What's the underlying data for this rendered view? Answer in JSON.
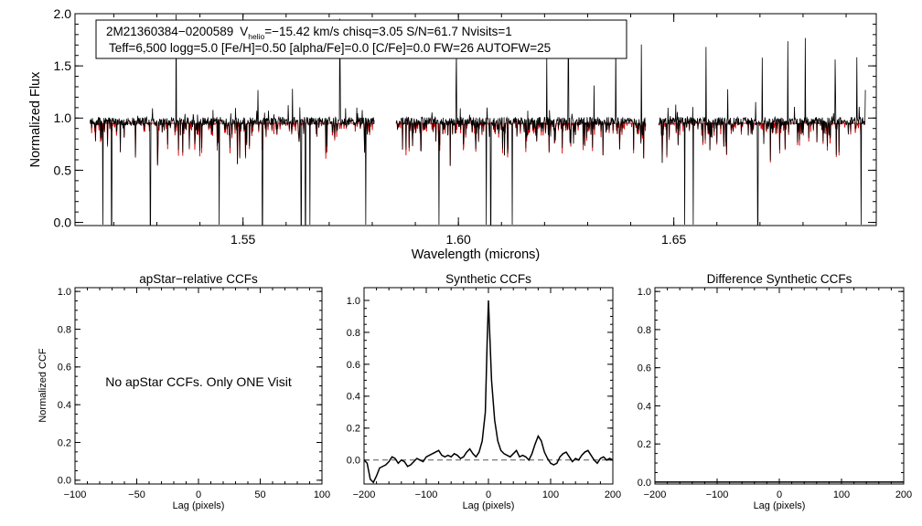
{
  "chart_data": [
    {
      "type": "line",
      "id": "spectrum",
      "title": "",
      "annotation": {
        "line1_id": "2M21360384−0200589",
        "line1_v": "V",
        "line1_vsub": "helio",
        "line1_rest": "=−15.42 km/s  chisq=3.05  S/N=61.7  Nvisits=1",
        "line2": "Teff=6,500 logg=5.0 [Fe/H]=0.50 [alpha/Fe]=0.0 [C/Fe]=0.0 FW=26 AUTOFW=25"
      },
      "xlabel": "Wavelength (microns)",
      "ylabel": "Normalized Flux",
      "xlim": [
        1.511,
        1.697
      ],
      "ylim": [
        -0.03,
        2.0
      ],
      "xticks": [
        1.55,
        1.6,
        1.65
      ],
      "xtick_labels": [
        "1.55",
        "1.60",
        "1.65"
      ],
      "yticks": [
        0.0,
        0.5,
        1.0,
        1.5,
        2.0
      ],
      "ytick_labels": [
        "0.0",
        "0.5",
        "1.0",
        "1.5",
        "2.0"
      ],
      "segments": [
        [
          1.5145,
          1.5805
        ],
        [
          1.5855,
          1.6435
        ],
        [
          1.6465,
          1.6945
        ]
      ],
      "series": [
        {
          "role": "observed",
          "color": "#000000"
        },
        {
          "role": "model",
          "color": "#dd0000"
        }
      ],
      "spikes_up": [
        1.5285,
        1.5345,
        1.5535,
        1.5615,
        1.5655,
        1.5725,
        1.5785,
        1.5995,
        1.6205,
        1.6255,
        1.6315,
        1.6365,
        1.6425,
        1.6575,
        1.6625,
        1.6705,
        1.6765,
        1.6805,
        1.6875,
        1.6925,
        1.6945
      ],
      "spikes_down": [
        1.5175,
        1.5195,
        1.5285,
        1.5445,
        1.5545,
        1.5635,
        1.5645,
        1.5655,
        1.5785,
        1.5955,
        1.6065,
        1.6075,
        1.6125,
        1.6525,
        1.6545,
        1.6695,
        1.6935
      ]
    },
    {
      "type": "line",
      "id": "apstar",
      "title": "apStar−relative CCFs",
      "xlabel": "Lag (pixels)",
      "ylabel": "Normalized CCF",
      "xlim": [
        -100,
        100
      ],
      "ylim": [
        -0.02,
        1.02
      ],
      "xticks": [
        -100,
        -50,
        0,
        50,
        100
      ],
      "xtick_labels": [
        "−100",
        "−50",
        "0",
        "50",
        "100"
      ],
      "yticks": [
        0.0,
        0.2,
        0.4,
        0.6,
        0.8,
        1.0
      ],
      "ytick_labels": [
        "0.0",
        "0.2",
        "0.4",
        "0.6",
        "0.8",
        "1.0"
      ],
      "message": "No apStar CCFs.  Only ONE Visit",
      "series": []
    },
    {
      "type": "line",
      "id": "synthetic",
      "title": "Synthetic CCFs",
      "xlabel": "Lag (pixels)",
      "ylabel": "",
      "xlim": [
        -200,
        200
      ],
      "ylim": [
        -0.15,
        1.08
      ],
      "xticks": [
        -200,
        -100,
        0,
        100,
        200
      ],
      "xtick_labels": [
        "−200",
        "−100",
        "0",
        "100",
        "200"
      ],
      "yticks": [
        0.0,
        0.2,
        0.4,
        0.6,
        0.8,
        1.0
      ],
      "ytick_labels": [
        "0.0",
        "0.2",
        "0.4",
        "0.6",
        "0.8",
        "1.0"
      ],
      "reference_line": 0.0,
      "series": [
        {
          "color": "#000000",
          "x": [
            -200,
            -195,
            -190,
            -185,
            -180,
            -175,
            -170,
            -165,
            -160,
            -155,
            -150,
            -145,
            -140,
            -135,
            -130,
            -125,
            -120,
            -115,
            -110,
            -105,
            -100,
            -95,
            -90,
            -85,
            -80,
            -75,
            -70,
            -65,
            -60,
            -55,
            -50,
            -45,
            -40,
            -35,
            -30,
            -25,
            -20,
            -15,
            -10,
            -5,
            -2,
            0,
            2,
            5,
            10,
            15,
            20,
            25,
            30,
            35,
            40,
            45,
            50,
            55,
            60,
            65,
            70,
            75,
            80,
            85,
            90,
            95,
            100,
            105,
            110,
            115,
            120,
            125,
            130,
            135,
            140,
            145,
            150,
            155,
            160,
            165,
            170,
            175,
            180,
            185,
            190,
            195,
            200
          ],
          "y": [
            0.0,
            -0.02,
            -0.12,
            -0.14,
            -0.1,
            -0.05,
            -0.04,
            -0.03,
            -0.01,
            0.02,
            0.01,
            -0.02,
            0.0,
            -0.01,
            -0.04,
            -0.03,
            -0.01,
            0.01,
            0.0,
            -0.01,
            0.02,
            0.03,
            0.04,
            0.05,
            0.06,
            0.03,
            0.02,
            0.03,
            0.02,
            0.04,
            0.03,
            0.01,
            0.02,
            0.05,
            0.07,
            0.04,
            0.02,
            0.05,
            0.12,
            0.3,
            0.75,
            1.0,
            0.8,
            0.5,
            0.25,
            0.12,
            0.06,
            0.04,
            0.03,
            0.02,
            0.04,
            0.06,
            0.02,
            0.03,
            0.02,
            0.0,
            0.04,
            0.1,
            0.15,
            0.12,
            0.05,
            0.01,
            -0.02,
            -0.03,
            -0.02,
            0.02,
            0.04,
            0.05,
            0.02,
            -0.01,
            0.01,
            0.0,
            0.03,
            0.05,
            0.06,
            0.03,
            0.0,
            -0.02,
            0.01,
            0.02,
            0.0,
            0.01,
            0.0
          ]
        }
      ]
    },
    {
      "type": "line",
      "id": "difference",
      "title": "Difference Synthetic CCFs",
      "xlabel": "Lag (pixels)",
      "ylabel": "",
      "xlim": [
        -200,
        200
      ],
      "ylim": [
        -0.01,
        1.02
      ],
      "xticks": [
        -200,
        -100,
        0,
        100,
        200
      ],
      "xtick_labels": [
        "−200",
        "−100",
        "0",
        "100",
        "200"
      ],
      "yticks": [
        0.0,
        0.2,
        0.4,
        0.6,
        0.8,
        1.0
      ],
      "ytick_labels": [
        "0.0",
        "0.2",
        "0.4",
        "0.6",
        "0.8",
        "1.0"
      ],
      "series": [
        {
          "color": "#000000",
          "x": [
            -200,
            200
          ],
          "y": [
            0.0,
            0.0
          ]
        }
      ]
    }
  ]
}
